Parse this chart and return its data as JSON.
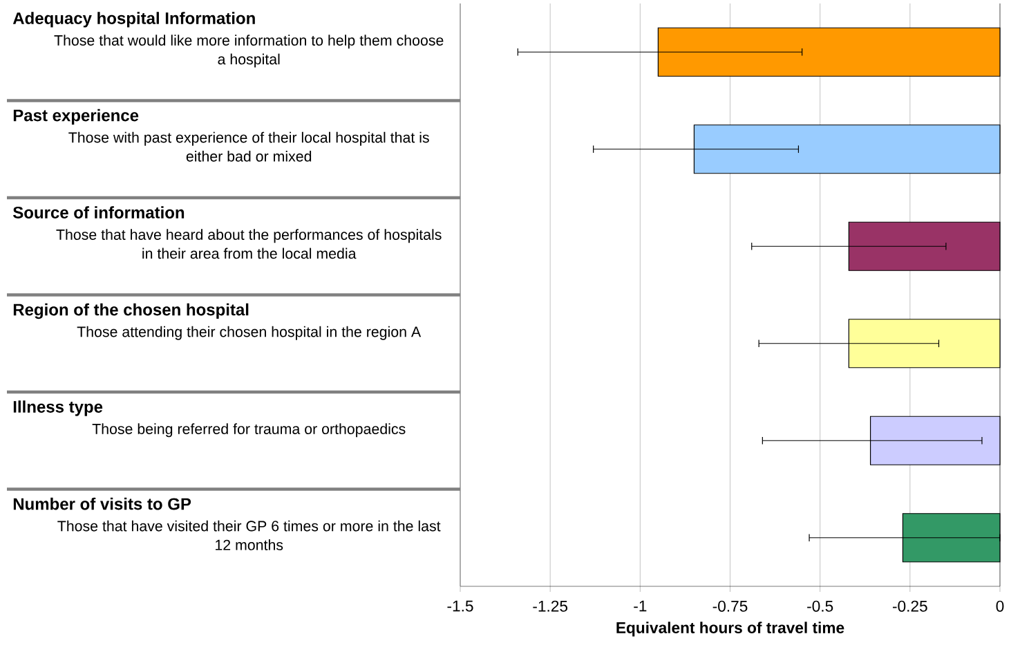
{
  "chart_data": {
    "type": "bar",
    "orientation": "horizontal",
    "categories": [
      "Those that would like more information to help them choose a hospital",
      "Those with past experience of their local hospital that is either bad or mixed",
      "Those that have heard about the performances of hospitals in their area from the local media",
      "Those attending their chosen hospital in the region A",
      "Those being referred for trauma or orthopaedics",
      "Those that have visited their GP 6 times or more in the last 12 months"
    ],
    "annotations": [
      "Adequacy hospital Information",
      "Past experience",
      "Source of information",
      "Region of the chosen hospital",
      "Illness type",
      "Number of visits  to GP"
    ],
    "values": [
      -0.95,
      -0.85,
      -0.42,
      -0.42,
      -0.36,
      -0.27
    ],
    "errors": [
      [
        -1.34,
        -0.55
      ],
      [
        -1.13,
        -0.56
      ],
      [
        -0.69,
        -0.15
      ],
      [
        -0.67,
        -0.17
      ],
      [
        -0.66,
        -0.05
      ],
      [
        -0.53,
        0
      ]
    ],
    "colors": [
      "#ff9900",
      "#99ccff",
      "#993366",
      "#ffff99",
      "#ccccff",
      "#339966"
    ],
    "xlim": [
      -1.5,
      0
    ],
    "xticks": [
      -1.5,
      -1.25,
      -1,
      -0.75,
      -0.5,
      -0.25,
      0
    ],
    "xlabel": "Equivalent hours of travel time",
    "grid": "x"
  }
}
